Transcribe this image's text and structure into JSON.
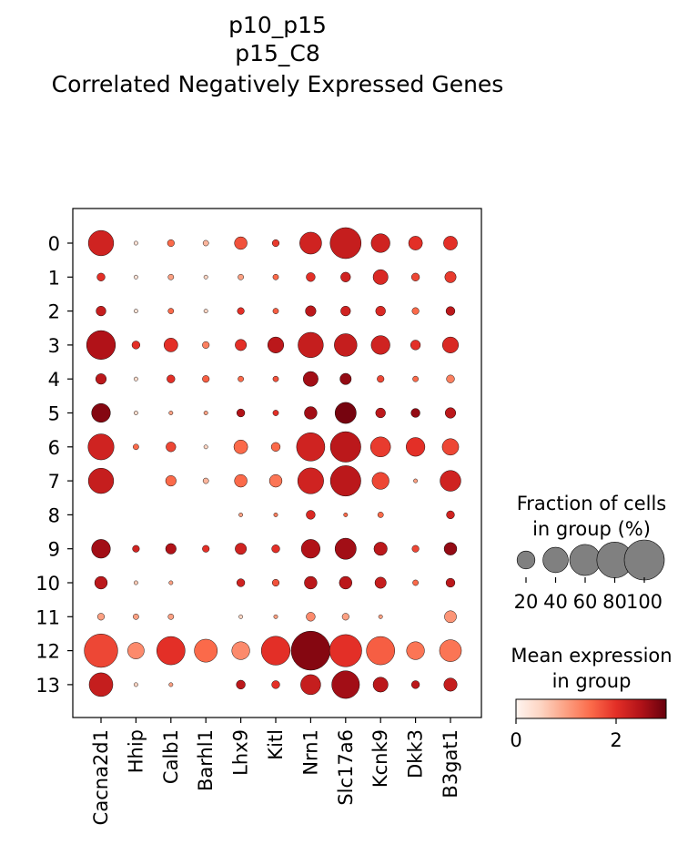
{
  "chart_data": {
    "type": "dotplot",
    "title_lines": [
      "p10_p15",
      "p15_C8",
      "Correlated Negatively Expressed Genes"
    ],
    "genes": [
      "Cacna2d1",
      "Hhip",
      "Calb1",
      "Barhl1",
      "Lhx9",
      "Kitl",
      "Nrn1",
      "Slc17a6",
      "Kcnk9",
      "Dkk3",
      "B3gat1"
    ],
    "groups": [
      "0",
      "1",
      "2",
      "3",
      "4",
      "5",
      "6",
      "7",
      "8",
      "9",
      "10",
      "11",
      "12",
      "13"
    ],
    "fraction_pct": [
      [
        40,
        1,
        3,
        2,
        10,
        3,
        30,
        60,
        22,
        12,
        12
      ],
      [
        4,
        1,
        2,
        1,
        2,
        2,
        5,
        6,
        14,
        4,
        8
      ],
      [
        6,
        1,
        2,
        1,
        3,
        2,
        7,
        6,
        6,
        3,
        5
      ],
      [
        52,
        4,
        12,
        3,
        8,
        16,
        40,
        32,
        22,
        6,
        16
      ],
      [
        7,
        1,
        4,
        3,
        2,
        2,
        14,
        8,
        3,
        2,
        4
      ],
      [
        22,
        1,
        1,
        1,
        4,
        2,
        10,
        28,
        6,
        5,
        7
      ],
      [
        42,
        2,
        6,
        1,
        12,
        5,
        50,
        58,
        25,
        22,
        17
      ],
      [
        40,
        0,
        7,
        2,
        10,
        10,
        42,
        58,
        18,
        1,
        27
      ],
      [
        0,
        0,
        0,
        0,
        1,
        1,
        5,
        1,
        2,
        0,
        4
      ],
      [
        22,
        3,
        7,
        3,
        8,
        4,
        22,
        28,
        11,
        3,
        10
      ],
      [
        10,
        1,
        1,
        0,
        4,
        3,
        10,
        10,
        8,
        2,
        5
      ],
      [
        3,
        2,
        2,
        0,
        1,
        1,
        5,
        3,
        1,
        0,
        9
      ],
      [
        70,
        17,
        50,
        33,
        20,
        52,
        95,
        65,
        50,
        20,
        30
      ],
      [
        35,
        1,
        1,
        0,
        5,
        4,
        25,
        48,
        14,
        4,
        11
      ]
    ],
    "mean_expression": [
      [
        2.2,
        0.3,
        1.5,
        0.8,
        1.7,
        1.9,
        2.2,
        2.3,
        2.2,
        2.0,
        2.0
      ],
      [
        2.0,
        0.3,
        1.0,
        0.5,
        1.0,
        1.5,
        2.0,
        2.2,
        2.1,
        1.8,
        1.9
      ],
      [
        2.3,
        0.3,
        1.5,
        0.5,
        2.0,
        1.6,
        2.4,
        2.2,
        2.1,
        1.5,
        2.4
      ],
      [
        2.5,
        2.0,
        2.0,
        1.3,
        2.0,
        2.4,
        2.3,
        2.3,
        2.2,
        2.0,
        2.1
      ],
      [
        2.4,
        0.4,
        2.0,
        1.6,
        1.5,
        1.7,
        2.6,
        2.7,
        1.8,
        1.5,
        1.3
      ],
      [
        2.8,
        0.4,
        1.0,
        1.0,
        2.5,
        2.0,
        2.6,
        2.9,
        2.4,
        2.7,
        2.4
      ],
      [
        2.2,
        1.5,
        1.8,
        0.5,
        1.5,
        1.5,
        2.2,
        2.4,
        1.9,
        2.0,
        1.8
      ],
      [
        2.3,
        0,
        1.5,
        0.8,
        1.5,
        1.4,
        2.2,
        2.4,
        1.8,
        1.0,
        2.2
      ],
      [
        0,
        0,
        0,
        0,
        1.0,
        1.3,
        2.1,
        1.5,
        1.5,
        0,
        2.2
      ],
      [
        2.6,
        2.2,
        2.5,
        2.0,
        2.2,
        2.0,
        2.5,
        2.6,
        2.4,
        1.8,
        2.7
      ],
      [
        2.4,
        0.6,
        1.0,
        0,
        2.2,
        1.7,
        2.4,
        2.4,
        2.3,
        1.5,
        2.4
      ],
      [
        1.0,
        1.0,
        1.0,
        0,
        0.5,
        1.0,
        1.2,
        1.0,
        1.0,
        0,
        1.1
      ],
      [
        1.8,
        1.2,
        2.0,
        1.5,
        1.2,
        2.0,
        2.8,
        2.0,
        1.6,
        1.4,
        1.4
      ],
      [
        2.3,
        0.5,
        1.0,
        0,
        2.4,
        2.0,
        2.3,
        2.6,
        2.4,
        2.4,
        2.3
      ]
    ],
    "size_legend": {
      "title_lines": [
        "Fraction of cells",
        "in group (%)"
      ],
      "values": [
        20,
        40,
        60,
        80,
        100
      ],
      "tick_labels": [
        "20",
        "40",
        "60",
        "80",
        "100"
      ]
    },
    "color_legend": {
      "title_lines": [
        "Mean expression",
        "in group"
      ],
      "range": [
        0,
        3
      ],
      "ticks": [
        0,
        2
      ],
      "tick_labels": [
        "0",
        "2"
      ],
      "colormap": "Reds",
      "stops": [
        "#fff5f0",
        "#fdd4c2",
        "#fca082",
        "#fb6a4a",
        "#e32f27",
        "#b11218",
        "#67000d"
      ]
    },
    "legend_dot_color": "#808080",
    "dot_edge_color": "#000000"
  }
}
